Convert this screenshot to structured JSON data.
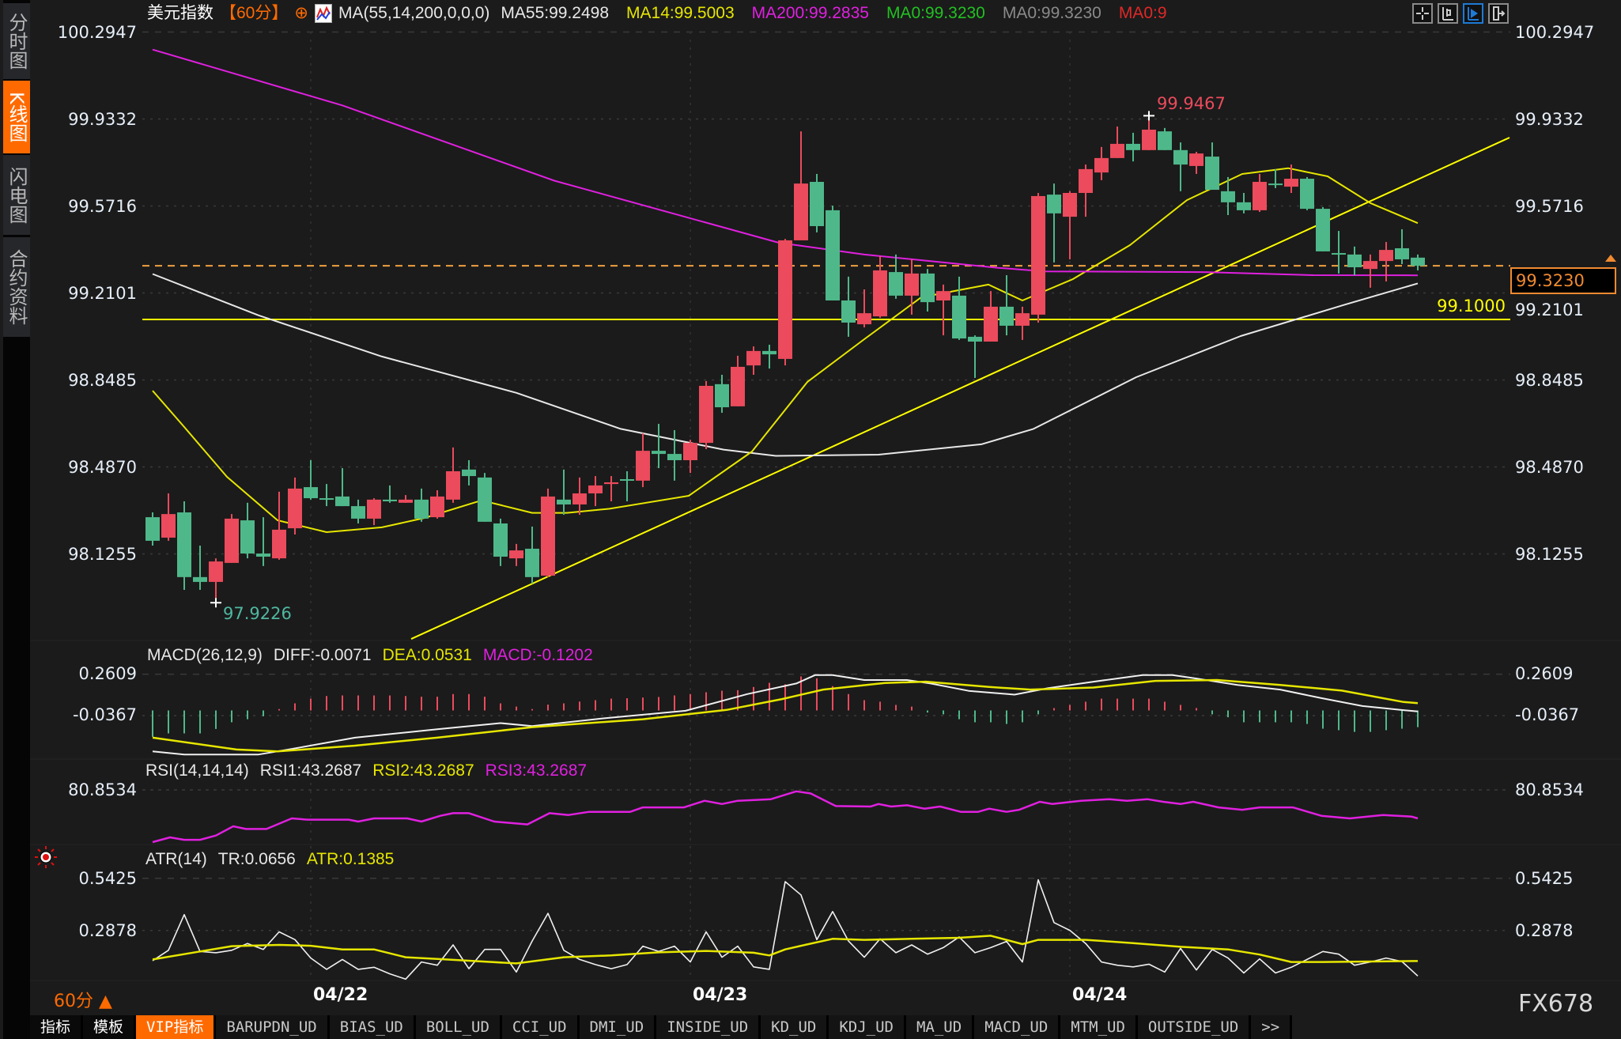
{
  "sidebar": {
    "tabs": [
      {
        "label": "分时图",
        "active": false
      },
      {
        "label": "K线图",
        "active": true
      },
      {
        "label": "闪电图",
        "active": false
      },
      {
        "label": "合约资料",
        "active": false
      }
    ]
  },
  "header": {
    "symbol": "美元指数",
    "period": "【60分】",
    "period_icon": "⊕",
    "ma_params": "MA(55,14,200,0,0,0)",
    "ma55": "MA55:99.2498",
    "ma14": "MA14:99.5003",
    "ma200": "MA200:99.2835",
    "ma0_green": "MA0:99.3230",
    "ma0_gray": "MA0:99.3230",
    "ma0_red": "MA0:9",
    "colors": {
      "ma55": "#e8e8e8",
      "ma14": "#e6e600",
      "ma200": "#e020e0",
      "ma0_green": "#22c022",
      "ma0_gray": "#8a8a8a",
      "ma0_red": "#e02828"
    }
  },
  "toolbar_icons": [
    "crosshair-icon",
    "candle-settings-icon",
    "play-icon",
    "exit-icon"
  ],
  "price_axis": {
    "ticks": [
      "100.2947",
      "99.9332",
      "99.5716",
      "99.2101",
      "98.8485",
      "98.4870",
      "98.1255"
    ]
  },
  "annotations": {
    "high_label": "99.9467",
    "low_label": "97.9226",
    "current_price": "99.3230",
    "support_label": "99.1000"
  },
  "macd": {
    "title": "MACD(26,12,9)",
    "diff": "DIFF:-0.0071",
    "dea": "DEA:0.0531",
    "macd": "MACD:-0.1202",
    "ticks": [
      "0.2609",
      "-0.0367"
    ]
  },
  "rsi": {
    "title": "RSI(14,14,14)",
    "rsi1": "RSI1:43.2687",
    "rsi2": "RSI2:43.2687",
    "rsi3": "RSI3:43.2687",
    "ticks": [
      "80.8534"
    ]
  },
  "atr": {
    "title": "ATR(14)",
    "tr": "TR:0.0656",
    "atr": "ATR:0.1385",
    "ticks": [
      "0.5425",
      "0.2878"
    ]
  },
  "period_selector": {
    "label": "60分",
    "arrow": "▲"
  },
  "watermark": "FX678",
  "bottom_tabs": [
    {
      "label": "指标",
      "active": false
    },
    {
      "label": "模板",
      "active": false
    },
    {
      "label": "VIP指标",
      "active": true
    },
    {
      "label": "BARUPDN_UD",
      "active": false
    },
    {
      "label": "BIAS_UD",
      "active": false
    },
    {
      "label": "BOLL_UD",
      "active": false
    },
    {
      "label": "CCI_UD",
      "active": false
    },
    {
      "label": "DMI_UD",
      "active": false
    },
    {
      "label": "INSIDE_UD",
      "active": false
    },
    {
      "label": "KD_UD",
      "active": false
    },
    {
      "label": "KDJ_UD",
      "active": false
    },
    {
      "label": "MA_UD",
      "active": false
    },
    {
      "label": "MACD_UD",
      "active": false
    },
    {
      "label": "MTM_UD",
      "active": false
    },
    {
      "label": "OUTSIDE_UD",
      "active": false
    },
    {
      "label": ">>",
      "active": false
    }
  ],
  "chart_data": {
    "type": "candlestick",
    "title": "美元指数【60分】",
    "up_color": "#eb4b5c",
    "down_color": "#4fb88a",
    "ylim": [
      97.86,
      100.31
    ],
    "grid": true,
    "x_tick_labels": [
      {
        "index": 10,
        "label": "04/22"
      },
      {
        "index": 34,
        "label": "04/23"
      },
      {
        "index": 58,
        "label": "04/24"
      }
    ],
    "ohlc_columns": [
      "open",
      "high",
      "low",
      "close"
    ],
    "candles": [
      [
        98.278,
        98.298,
        98.16,
        98.18
      ],
      [
        98.193,
        98.377,
        98.18,
        98.291
      ],
      [
        98.298,
        98.344,
        97.976,
        98.029
      ],
      [
        98.029,
        98.16,
        97.976,
        98.009
      ],
      [
        98.009,
        98.107,
        97.923,
        98.094
      ],
      [
        98.088,
        98.291,
        98.088,
        98.272
      ],
      [
        98.265,
        98.338,
        98.107,
        98.127
      ],
      [
        98.127,
        98.278,
        98.075,
        98.114
      ],
      [
        98.107,
        98.384,
        98.101,
        98.226
      ],
      [
        98.232,
        98.443,
        98.206,
        98.397
      ],
      [
        98.403,
        98.515,
        98.351,
        98.357
      ],
      [
        98.357,
        98.416,
        98.324,
        98.354
      ],
      [
        98.364,
        98.482,
        98.324,
        98.324
      ],
      [
        98.324,
        98.351,
        98.252,
        98.272
      ],
      [
        98.272,
        98.357,
        98.245,
        98.351
      ],
      [
        98.351,
        98.41,
        98.338,
        98.344
      ],
      [
        98.338,
        98.37,
        98.338,
        98.351
      ],
      [
        98.351,
        98.397,
        98.259,
        98.272
      ],
      [
        98.278,
        98.39,
        98.272,
        98.364
      ],
      [
        98.351,
        98.568,
        98.338,
        98.469
      ],
      [
        98.476,
        98.515,
        98.41,
        98.449
      ],
      [
        98.443,
        98.462,
        98.259,
        98.259
      ],
      [
        98.252,
        98.272,
        98.075,
        98.114
      ],
      [
        98.107,
        98.167,
        98.075,
        98.14
      ],
      [
        98.147,
        98.239,
        98.002,
        98.029
      ],
      [
        98.035,
        98.397,
        98.029,
        98.364
      ],
      [
        98.351,
        98.476,
        98.288,
        98.331
      ],
      [
        98.331,
        98.443,
        98.288,
        98.377
      ],
      [
        98.377,
        98.449,
        98.324,
        98.41
      ],
      [
        98.416,
        98.449,
        98.344,
        98.423
      ],
      [
        98.436,
        98.469,
        98.344,
        98.43
      ],
      [
        98.43,
        98.627,
        98.403,
        98.554
      ],
      [
        98.554,
        98.666,
        98.482,
        98.541
      ],
      [
        98.541,
        98.64,
        98.43,
        98.515
      ],
      [
        98.515,
        98.6,
        98.462,
        98.587
      ],
      [
        98.587,
        98.844,
        98.561,
        98.824
      ],
      [
        98.831,
        98.87,
        98.712,
        98.735
      ],
      [
        98.739,
        98.949,
        98.739,
        98.903
      ],
      [
        98.909,
        98.988,
        98.87,
        98.969
      ],
      [
        98.969,
        98.995,
        98.896,
        98.955
      ],
      [
        98.936,
        99.435,
        98.909,
        99.429
      ],
      [
        99.429,
        99.882,
        99.429,
        99.665
      ],
      [
        99.672,
        99.705,
        99.462,
        99.488
      ],
      [
        99.554,
        99.573,
        99.179,
        99.179
      ],
      [
        99.179,
        99.278,
        99.028,
        99.087
      ],
      [
        99.08,
        99.225,
        99.067,
        99.126
      ],
      [
        99.113,
        99.363,
        99.107,
        99.304
      ],
      [
        99.297,
        99.37,
        99.186,
        99.199
      ],
      [
        99.199,
        99.35,
        99.12,
        99.291
      ],
      [
        99.291,
        99.31,
        99.133,
        99.172
      ],
      [
        99.179,
        99.245,
        99.034,
        99.218
      ],
      [
        99.199,
        99.278,
        99.015,
        99.021
      ],
      [
        99.028,
        99.034,
        98.857,
        99.008
      ],
      [
        99.008,
        99.218,
        99.008,
        99.153
      ],
      [
        99.153,
        99.284,
        99.034,
        99.074
      ],
      [
        99.074,
        99.153,
        99.015,
        99.126
      ],
      [
        99.12,
        99.626,
        99.087,
        99.613
      ],
      [
        99.619,
        99.665,
        99.337,
        99.541
      ],
      [
        99.527,
        99.633,
        99.35,
        99.626
      ],
      [
        99.626,
        99.744,
        99.527,
        99.725
      ],
      [
        99.711,
        99.817,
        99.679,
        99.771
      ],
      [
        99.771,
        99.902,
        99.771,
        99.83
      ],
      [
        99.83,
        99.876,
        99.757,
        99.804
      ],
      [
        99.804,
        99.947,
        99.804,
        99.889
      ],
      [
        99.882,
        99.896,
        99.804,
        99.804
      ],
      [
        99.804,
        99.836,
        99.633,
        99.744
      ],
      [
        99.738,
        99.797,
        99.705,
        99.79
      ],
      [
        99.777,
        99.836,
        99.639,
        99.639
      ],
      [
        99.633,
        99.692,
        99.534,
        99.587
      ],
      [
        99.587,
        99.626,
        99.541,
        99.554
      ],
      [
        99.554,
        99.705,
        99.547,
        99.672
      ],
      [
        99.665,
        99.725,
        99.646,
        99.659
      ],
      [
        99.652,
        99.744,
        99.626,
        99.685
      ],
      [
        99.685,
        99.692,
        99.554,
        99.56
      ],
      [
        99.56,
        99.567,
        99.383,
        99.383
      ],
      [
        99.376,
        99.468,
        99.291,
        99.37
      ],
      [
        99.37,
        99.403,
        99.284,
        99.317
      ],
      [
        99.31,
        99.37,
        99.232,
        99.343
      ],
      [
        99.343,
        99.422,
        99.258,
        99.389
      ],
      [
        99.396,
        99.475,
        99.33,
        99.35
      ],
      [
        99.357,
        99.37,
        99.304,
        99.323
      ]
    ],
    "moving_averages": [
      {
        "name": "MA55",
        "color": "#e8e8e8",
        "index": [
          0,
          6.7,
          14.5,
          23,
          29.6,
          36.1,
          39.4,
          45.9,
          52.4,
          55.7,
          62.2,
          68.8,
          75.3,
          80
        ],
        "value": [
          99.289,
          99.117,
          98.946,
          98.795,
          98.645,
          98.559,
          98.533,
          98.538,
          98.581,
          98.645,
          98.86,
          99.031,
          99.16,
          99.2498
        ]
      },
      {
        "name": "MA14",
        "color": "#e6e600",
        "index": [
          0,
          2,
          4.7,
          7.9,
          11,
          14.5,
          17.2,
          20.8,
          24,
          26.2,
          28.9,
          33.9,
          37.9,
          41.4,
          45,
          48.6,
          52.85,
          55,
          58.2,
          61.8,
          65.4,
          68.9,
          71.8,
          74.3,
          77,
          80
        ],
        "value": [
          98.804,
          98.653,
          98.446,
          98.265,
          98.216,
          98.236,
          98.275,
          98.348,
          98.296,
          98.296,
          98.313,
          98.367,
          98.551,
          98.84,
          99.018,
          99.192,
          99.245,
          99.179,
          99.268,
          99.409,
          99.596,
          99.705,
          99.729,
          99.695,
          99.584,
          99.5003
        ]
      },
      {
        "name": "MA200",
        "color": "#e020e0",
        "index": [
          0,
          12,
          25.4,
          39.6,
          45,
          53.4,
          56.4,
          66.4,
          73.4,
          80
        ],
        "value": [
          100.222,
          99.99,
          99.677,
          99.419,
          99.37,
          99.315,
          99.3,
          99.297,
          99.284,
          99.2835
        ]
      }
    ],
    "trendline": {
      "color": "#ffff00",
      "from": {
        "index": 16.35,
        "value": 97.772
      },
      "to": {
        "index": 85.8,
        "value": 99.856
      }
    },
    "horizontal_line": {
      "value": 99.1,
      "color": "#ffff00"
    },
    "current_price_line": {
      "value": 99.323,
      "color": "#f0a040"
    },
    "high": {
      "index": 63,
      "value": 99.9467
    },
    "low": {
      "index": 4,
      "value": 97.9226
    },
    "macd": {
      "ylim_ticks": [
        0.2609,
        -0.0367
      ],
      "histogram": [
        -0.19,
        -0.165,
        -0.165,
        -0.165,
        -0.133,
        -0.085,
        -0.063,
        -0.042,
        0.01,
        0.051,
        0.085,
        0.104,
        0.108,
        0.108,
        0.108,
        0.108,
        0.104,
        0.099,
        0.099,
        0.118,
        0.118,
        0.099,
        0.051,
        0.028,
        0.01,
        0.042,
        0.051,
        0.064,
        0.074,
        0.085,
        0.088,
        0.093,
        0.097,
        0.108,
        0.118,
        0.131,
        0.142,
        0.146,
        0.169,
        0.199,
        0.188,
        0.245,
        0.231,
        0.175,
        0.118,
        0.074,
        0.063,
        0.04,
        0.028,
        -0.015,
        -0.028,
        -0.063,
        -0.085,
        -0.085,
        -0.097,
        -0.085,
        -0.028,
        0.017,
        0.04,
        0.063,
        0.085,
        0.085,
        0.085,
        0.085,
        0.063,
        0.04,
        0.017,
        -0.028,
        -0.049,
        -0.085,
        -0.085,
        -0.085,
        -0.085,
        -0.097,
        -0.131,
        -0.142,
        -0.154,
        -0.154,
        -0.142,
        -0.131,
        -0.12
      ],
      "diff": {
        "color": "#f0f0f0",
        "index": [
          0,
          2,
          6.7,
          8.6,
          12.8,
          18,
          22,
          24,
          28.5,
          33.7,
          37.6,
          40.7,
          41.9,
          43,
          45,
          47.7,
          49.2,
          51.6,
          54.5,
          56.6,
          59.5,
          62.6,
          64.5,
          66,
          68.6,
          71.3,
          73.9,
          76.5,
          79.1,
          80
        ],
        "value": [
          -0.295,
          -0.317,
          -0.317,
          -0.281,
          -0.196,
          -0.135,
          -0.091,
          -0.112,
          -0.057,
          -0.002,
          0.118,
          0.194,
          0.255,
          0.255,
          0.219,
          0.219,
          0.194,
          0.141,
          0.114,
          0.16,
          0.207,
          0.255,
          0.255,
          0.23,
          0.184,
          0.15,
          0.089,
          0.032,
          0.002,
          -0.0071
        ]
      },
      "dea": {
        "color": "#e6e600",
        "index": [
          0,
          5.3,
          7.9,
          12.8,
          18,
          24,
          31,
          36.3,
          39.8,
          42.4,
          46.3,
          48.9,
          52.9,
          55.5,
          59.5,
          63.4,
          67.3,
          71.3,
          75.2,
          79.1,
          80
        ],
        "value": [
          -0.196,
          -0.281,
          -0.295,
          -0.253,
          -0.196,
          -0.12,
          -0.063,
          0.004,
          0.082,
          0.15,
          0.198,
          0.207,
          0.169,
          0.15,
          0.165,
          0.213,
          0.219,
          0.184,
          0.143,
          0.061,
          0.0531
        ]
      }
    },
    "rsi": {
      "color": "#e020e0",
      "index": [
        0,
        1.1,
        2,
        3,
        4,
        5.1,
        5.9,
        7.2,
        8.8,
        9.8,
        12.4,
        13,
        14,
        16.1,
        17,
        18.2,
        19,
        20,
        21.6,
        23.7,
        25.1,
        26.3,
        27.6,
        30.2,
        31,
        33.6,
        34.9,
        36,
        37,
        39.1,
        40.7,
        41.6,
        43.2,
        45.4,
        45.9,
        46.7,
        47.7,
        48.8,
        49.8,
        51.1,
        52.2,
        52.9,
        54,
        54.8,
        56.1,
        56.9,
        58.7,
        60.5,
        61.6,
        62.9,
        63.9,
        65,
        65.8,
        67.4,
        68.9,
        70,
        72.1,
        73.9,
        75.7,
        77.8,
        79.6,
        80
      ],
      "value": [
        11.9,
        18.2,
        15,
        15,
        20.6,
        32.8,
        29.3,
        29.3,
        43.3,
        41.6,
        41.6,
        39.1,
        43.3,
        43.3,
        39.1,
        46.7,
        50.2,
        50.2,
        39.1,
        35.3,
        50.2,
        47.8,
        51.9,
        51.9,
        57.8,
        57.8,
        66.5,
        62.3,
        66.5,
        68.6,
        79.0,
        76.3,
        59.6,
        58.9,
        62.3,
        58.9,
        60.6,
        56.1,
        58.9,
        51.9,
        51.9,
        56.1,
        51.9,
        54.7,
        65.2,
        62.3,
        66.5,
        68.6,
        66.5,
        68.6,
        65.2,
        62.3,
        65.2,
        57.8,
        54.7,
        57.8,
        57.8,
        46.7,
        43.3,
        47.8,
        45.7,
        43.2687
      ]
    },
    "atr": {
      "tr_color": "#f0f0f0",
      "atr_color": "#e6e600",
      "tr": [
        0.14,
        0.191,
        0.365,
        0.185,
        0.179,
        0.191,
        0.224,
        0.195,
        0.281,
        0.243,
        0.153,
        0.098,
        0.146,
        0.098,
        0.108,
        0.076,
        0.05,
        0.134,
        0.118,
        0.217,
        0.101,
        0.195,
        0.195,
        0.085,
        0.236,
        0.371,
        0.191,
        0.146,
        0.121,
        0.101,
        0.121,
        0.211,
        0.185,
        0.211,
        0.134,
        0.281,
        0.157,
        0.211,
        0.11,
        0.098,
        0.526,
        0.461,
        0.243,
        0.38,
        0.236,
        0.157,
        0.247,
        0.179,
        0.217,
        0.172,
        0.204,
        0.256,
        0.179,
        0.204,
        0.234,
        0.134,
        0.535,
        0.326,
        0.288,
        0.224,
        0.134,
        0.118,
        0.11,
        0.123,
        0.085,
        0.2,
        0.095,
        0.195,
        0.153,
        0.08,
        0.149,
        0.08,
        0.108,
        0.146,
        0.185,
        0.172,
        0.118,
        0.134,
        0.153,
        0.136,
        0.0656
      ],
      "atr_index": [
        0,
        3,
        5,
        8,
        10,
        12,
        14,
        16,
        18,
        20,
        23,
        26,
        29,
        32,
        35,
        38,
        39,
        40,
        41,
        43,
        45,
        48,
        51,
        53,
        55,
        56,
        59,
        62,
        65,
        68,
        70,
        72,
        74,
        77,
        80
      ],
      "atr_value": [
        0.146,
        0.185,
        0.211,
        0.217,
        0.213,
        0.195,
        0.195,
        0.157,
        0.149,
        0.14,
        0.127,
        0.157,
        0.166,
        0.181,
        0.188,
        0.179,
        0.166,
        0.195,
        0.213,
        0.247,
        0.242,
        0.247,
        0.252,
        0.262,
        0.221,
        0.242,
        0.242,
        0.226,
        0.208,
        0.195,
        0.17,
        0.134,
        0.134,
        0.136,
        0.1385
      ]
    }
  }
}
